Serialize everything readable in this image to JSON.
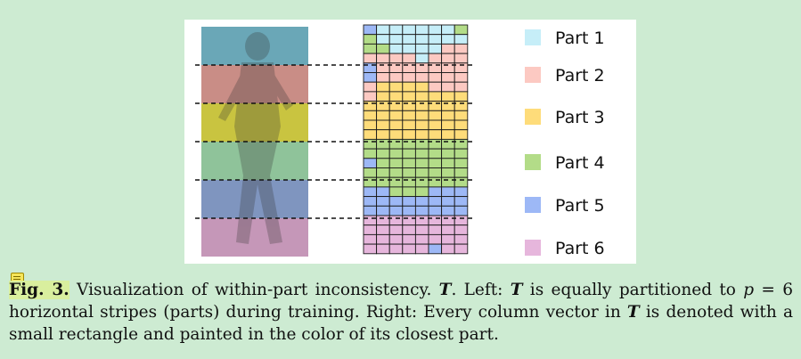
{
  "figure": {
    "legend": [
      {
        "label": "Part 1",
        "color": "#c6eef8"
      },
      {
        "label": "Part 2",
        "color": "#fcc9c2"
      },
      {
        "label": "Part 3",
        "color": "#fedc7a"
      },
      {
        "label": "Part 4",
        "color": "#b3dc88"
      },
      {
        "label": "Part 5",
        "color": "#9db8f6"
      },
      {
        "label": "Part 6",
        "color": "#e6b6dc"
      }
    ],
    "stripe_colors": [
      "#6aa7b7",
      "#c98d86",
      "#c9c440",
      "#8fc39a",
      "#7f95bf",
      "#c597b8"
    ],
    "grid": {
      "cols": 8,
      "rows": 24,
      "cells": [
        "51111114",
        "41111111",
        "44111122",
        "22221222",
        "52222222",
        "52222222",
        "23333222",
        "23333333",
        "33333333",
        "33333333",
        "33333333",
        "33333333",
        "44444444",
        "44444444",
        "54444444",
        "44444444",
        "44444444",
        "55444555",
        "55555555",
        "55555555",
        "66666666",
        "66666666",
        "66666666",
        "66666566"
      ]
    }
  },
  "caption": {
    "fig_label": "Fig. 3.",
    "line1_a": "Visualization of within-part inconsistency.",
    "T1": "T",
    "line1_b": ". Left:",
    "T2": "T",
    "line1_c": "is equally partitioned to",
    "p": "p",
    "line2_a": "= 6 horizontal stripes (parts) during training. Right: Every column vector in",
    "T3": "T",
    "line2_b": "is denoted with a small rectangle and painted in the color of its closest part."
  }
}
